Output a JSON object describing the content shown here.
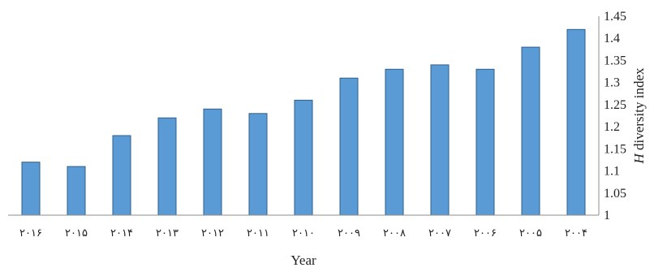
{
  "chart_data": {
    "type": "bar",
    "categories": [
      "۲۰۱۶",
      "۲۰۱۵",
      "۲۰۱۴",
      "۲۰۱۳",
      "۲۰۱۲",
      "۲۰۱۱",
      "۲۰۱۰",
      "۲۰۰۹",
      "۲۰۰۸",
      "۲۰۰۷",
      "۲۰۰۶",
      "۲۰۰۵",
      "۲۰۰۴"
    ],
    "values": [
      1.12,
      1.11,
      1.18,
      1.22,
      1.24,
      1.23,
      1.26,
      1.31,
      1.33,
      1.34,
      1.33,
      1.38,
      1.42
    ],
    "xlabel": "Year",
    "ylabel_italic": "H",
    "ylabel_rest": " diversity index",
    "ylim": [
      1,
      1.45
    ],
    "yticks": [
      "1",
      "1.05",
      "1.1",
      "1.15",
      "1.2",
      "1.25",
      "1.3",
      "1.35",
      "1.4",
      "1.45"
    ],
    "y_axis_side": "right",
    "grid": false,
    "bar_color": "#5b9bd5",
    "bar_edge_color": "#2f5f8a"
  }
}
